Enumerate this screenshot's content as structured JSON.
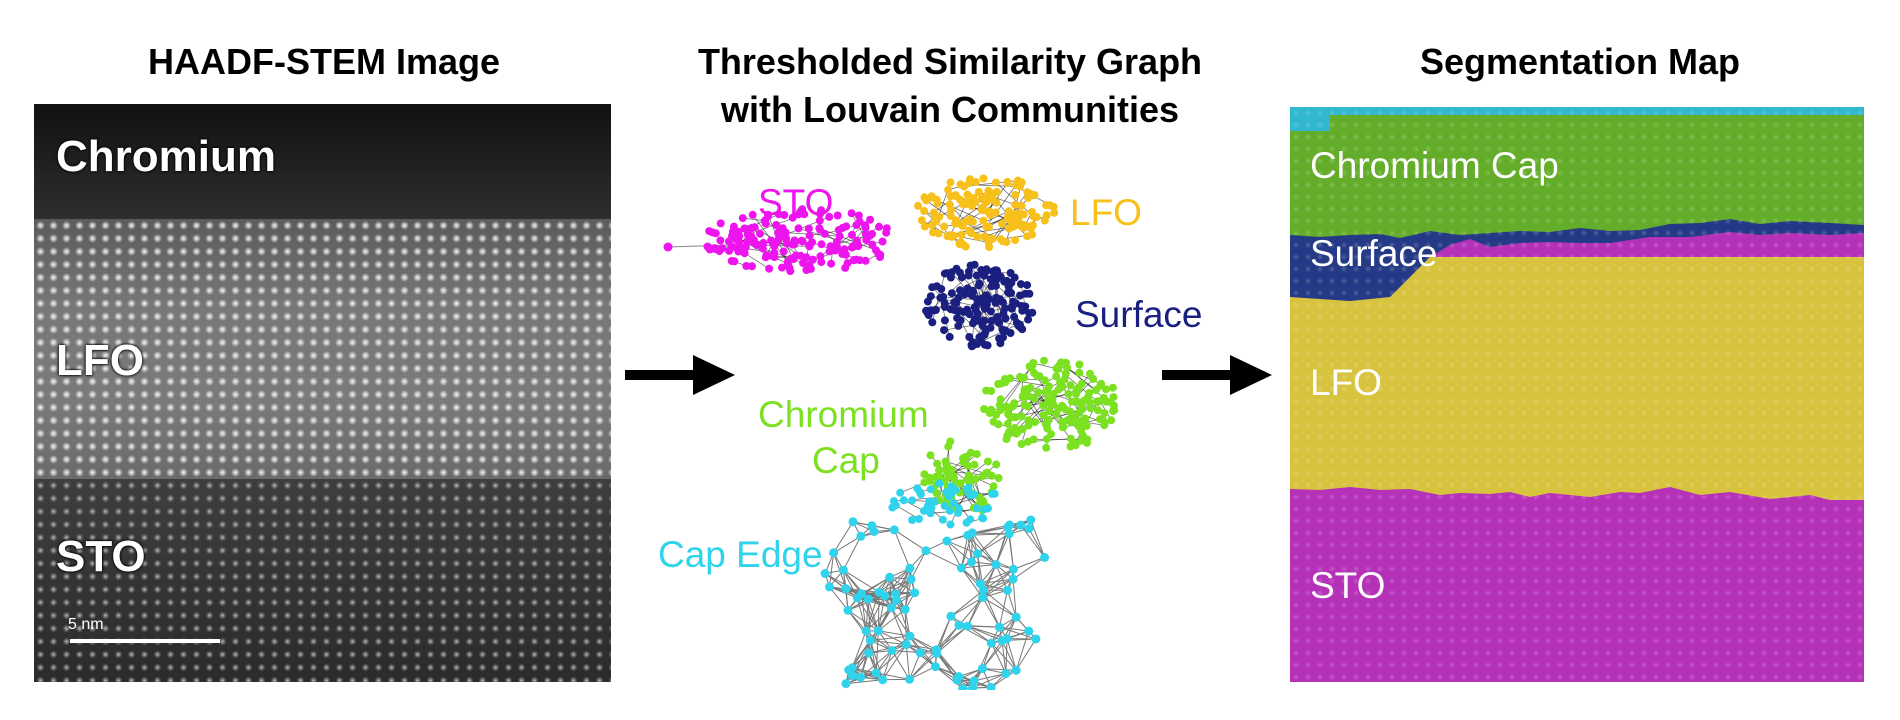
{
  "titles": {
    "stem": "HAADF-STEM Image",
    "graph_line1": "Thresholded Similarity Graph",
    "graph_line2": "with Louvain Communities",
    "segmentation": "Segmentation Map"
  },
  "stem_image": {
    "labels": [
      "Chromium",
      "LFO",
      "STO"
    ],
    "scale_bar": "5 nm"
  },
  "graph": {
    "communities": [
      {
        "name": "STO",
        "color": "#ee14ee"
      },
      {
        "name": "LFO",
        "color": "#f7c01a"
      },
      {
        "name": "Surface",
        "color": "#1a1f80"
      },
      {
        "name": "Chromium Cap",
        "color": "#7be120"
      },
      {
        "name": "Cap Edge",
        "color": "#2fd3ec"
      }
    ],
    "label_sto": "STO",
    "label_lfo": "LFO",
    "label_surface": "Surface",
    "label_chrom_1": "Chromium",
    "label_chrom_2": "Cap",
    "label_cap_edge": "Cap Edge"
  },
  "segmentation": {
    "labels": [
      "Chromium Cap",
      "Surface",
      "LFO",
      "STO"
    ],
    "colors": {
      "chromium_cap": "#64ad2a",
      "surface": "#253a86",
      "lfo": "#d8c33e",
      "sto": "#b531b8",
      "edge": "#31b7cf"
    }
  }
}
